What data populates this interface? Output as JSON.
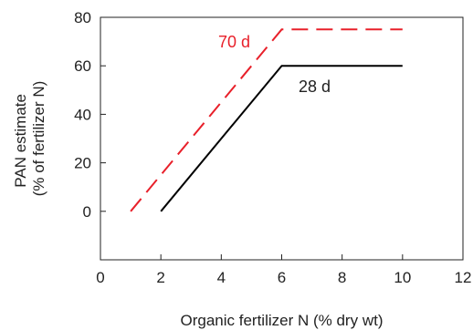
{
  "chart_data": {
    "type": "line",
    "xlabel": "Organic fertilizer N (% dry wt)",
    "ylabel": [
      "PAN estimate",
      "(% of fertilizer N)"
    ],
    "xlim": [
      0,
      12
    ],
    "ylim": [
      -20,
      80
    ],
    "x_ticks": [
      0,
      2,
      4,
      6,
      8,
      10,
      12
    ],
    "y_ticks": [
      0,
      20,
      40,
      60,
      80
    ],
    "grid": false,
    "legend": "none",
    "series": [
      {
        "name": "70 d",
        "color": "#e8202a",
        "line_style": "dashed",
        "points": [
          [
            1,
            0
          ],
          [
            6,
            75
          ],
          [
            10,
            75
          ]
        ]
      },
      {
        "name": "28 d",
        "color": "#000000",
        "line_style": "solid",
        "points": [
          [
            2,
            0
          ],
          [
            6,
            60
          ],
          [
            10,
            60
          ]
        ]
      }
    ]
  }
}
